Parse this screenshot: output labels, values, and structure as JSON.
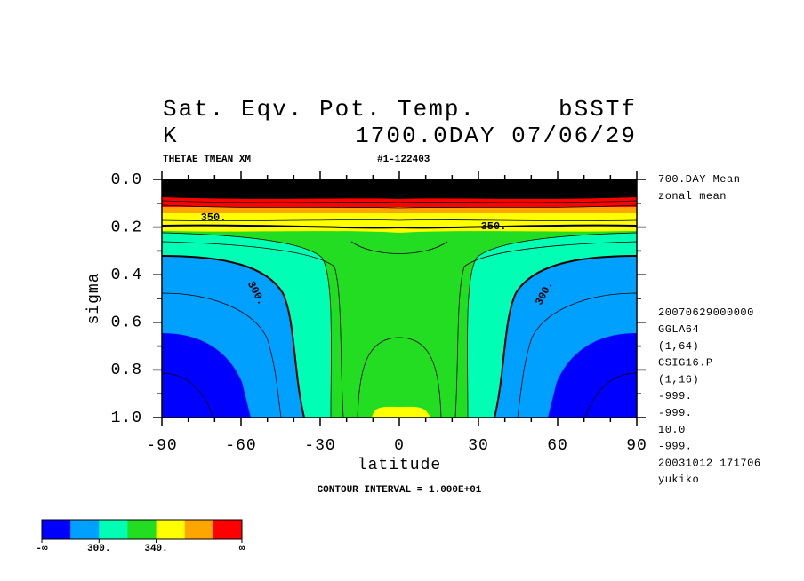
{
  "chart_data": {
    "type": "contour",
    "title": "Sat. Eqv. Pot. Temp.",
    "title_right": "bSSTf",
    "units": "K",
    "subtitle": "1700.0DAY 07/06/29",
    "variable": "THETAE TMEAN XM",
    "run": "#1-122403",
    "xlabel": "latitude",
    "ylabel": "sigma",
    "xlim": [
      -90,
      90
    ],
    "xticks": [
      -90,
      -60,
      -30,
      0,
      30,
      60,
      90
    ],
    "ylim": [
      1,
      0
    ],
    "yticks": [
      {
        "value": 0,
        "label": "0.0"
      },
      0.2,
      0.4,
      0.6,
      0.8,
      {
        "value": 1,
        "label": "1.0"
      }
    ],
    "contour_interval": "CONTOUR INTERVAL = 1.000E+01",
    "contour_labels": [
      "350.",
      "350.",
      "300.",
      "300."
    ],
    "notes_top": [
      "700.DAY Mean",
      "zonal mean"
    ],
    "notes": [
      "20070629000000",
      "GGLA64",
      "(1,64)",
      "CSIG16.P",
      "(1,16)",
      "-999.",
      "-999.",
      "10.0",
      "-999.",
      "20031012 171706",
      "yukiko"
    ],
    "colorbar": {
      "colors": [
        "#0000ff",
        "#00a0ff",
        "#00ffb4",
        "#22dd22",
        "#ffff00",
        "#ffa500",
        "#ff0000"
      ],
      "labels": [
        "-∞",
        "300.",
        "340.",
        "∞"
      ]
    }
  }
}
